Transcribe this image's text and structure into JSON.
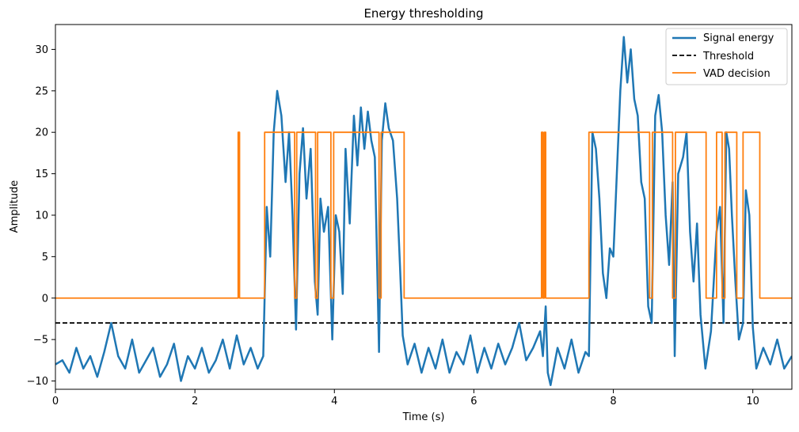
{
  "chart_data": {
    "type": "line",
    "title": "Energy thresholding",
    "xlabel": "Time (s)",
    "ylabel": "Amplitude",
    "xlim": [
      0,
      10.56
    ],
    "ylim": [
      -11,
      33
    ],
    "xticks": [
      0,
      2,
      4,
      6,
      8,
      10
    ],
    "yticks": [
      -10,
      -5,
      0,
      5,
      10,
      15,
      20,
      25,
      30
    ],
    "grid": false,
    "legend_position": "top-right",
    "colors": {
      "energy": "#1f77b4",
      "threshold": "#000000",
      "vad": "#ff7f0e"
    },
    "series": [
      {
        "name": "Signal energy",
        "style": "solid",
        "points": [
          [
            0.0,
            -8.0
          ],
          [
            0.1,
            -7.5
          ],
          [
            0.2,
            -9.0
          ],
          [
            0.3,
            -6.0
          ],
          [
            0.4,
            -8.5
          ],
          [
            0.5,
            -7.0
          ],
          [
            0.6,
            -9.5
          ],
          [
            0.7,
            -6.5
          ],
          [
            0.8,
            -3.0
          ],
          [
            0.9,
            -7.0
          ],
          [
            1.0,
            -8.5
          ],
          [
            1.1,
            -5.0
          ],
          [
            1.2,
            -9.0
          ],
          [
            1.3,
            -7.5
          ],
          [
            1.4,
            -6.0
          ],
          [
            1.5,
            -9.5
          ],
          [
            1.6,
            -8.0
          ],
          [
            1.7,
            -5.5
          ],
          [
            1.8,
            -10.0
          ],
          [
            1.9,
            -7.0
          ],
          [
            2.0,
            -8.5
          ],
          [
            2.1,
            -6.0
          ],
          [
            2.2,
            -9.0
          ],
          [
            2.3,
            -7.5
          ],
          [
            2.4,
            -5.0
          ],
          [
            2.5,
            -8.5
          ],
          [
            2.6,
            -4.5
          ],
          [
            2.7,
            -8.0
          ],
          [
            2.8,
            -6.0
          ],
          [
            2.9,
            -8.5
          ],
          [
            2.98,
            -7.0
          ],
          [
            3.03,
            11.0
          ],
          [
            3.08,
            5.0
          ],
          [
            3.13,
            20.0
          ],
          [
            3.18,
            25.0
          ],
          [
            3.24,
            22.0
          ],
          [
            3.3,
            14.0
          ],
          [
            3.35,
            20.0
          ],
          [
            3.4,
            10.0
          ],
          [
            3.45,
            -3.8
          ],
          [
            3.5,
            15.0
          ],
          [
            3.55,
            20.5
          ],
          [
            3.6,
            12.0
          ],
          [
            3.66,
            18.0
          ],
          [
            3.72,
            2.0
          ],
          [
            3.76,
            -2.0
          ],
          [
            3.8,
            12.0
          ],
          [
            3.85,
            8.0
          ],
          [
            3.91,
            11.0
          ],
          [
            3.97,
            -5.0
          ],
          [
            4.02,
            10.0
          ],
          [
            4.07,
            8.0
          ],
          [
            4.12,
            0.5
          ],
          [
            4.16,
            18.0
          ],
          [
            4.22,
            9.0
          ],
          [
            4.28,
            22.0
          ],
          [
            4.33,
            16.0
          ],
          [
            4.38,
            23.0
          ],
          [
            4.43,
            18.0
          ],
          [
            4.48,
            22.5
          ],
          [
            4.53,
            19.0
          ],
          [
            4.58,
            17.0
          ],
          [
            4.64,
            -6.5
          ],
          [
            4.68,
            19.0
          ],
          [
            4.73,
            23.5
          ],
          [
            4.78,
            20.5
          ],
          [
            4.84,
            19.0
          ],
          [
            4.9,
            12.0
          ],
          [
            4.94,
            4.0
          ],
          [
            4.98,
            -4.5
          ],
          [
            5.05,
            -8.0
          ],
          [
            5.15,
            -5.5
          ],
          [
            5.25,
            -9.0
          ],
          [
            5.35,
            -6.0
          ],
          [
            5.45,
            -8.5
          ],
          [
            5.55,
            -5.0
          ],
          [
            5.65,
            -9.0
          ],
          [
            5.75,
            -6.5
          ],
          [
            5.85,
            -8.0
          ],
          [
            5.95,
            -4.5
          ],
          [
            6.05,
            -9.0
          ],
          [
            6.15,
            -6.0
          ],
          [
            6.25,
            -8.5
          ],
          [
            6.35,
            -5.5
          ],
          [
            6.45,
            -8.0
          ],
          [
            6.55,
            -6.0
          ],
          [
            6.65,
            -3.0
          ],
          [
            6.75,
            -7.5
          ],
          [
            6.85,
            -6.0
          ],
          [
            6.95,
            -4.0
          ],
          [
            6.99,
            -7.0
          ],
          [
            7.03,
            -1.0
          ],
          [
            7.06,
            -9.0
          ],
          [
            7.1,
            -10.5
          ],
          [
            7.2,
            -6.0
          ],
          [
            7.3,
            -8.5
          ],
          [
            7.4,
            -5.0
          ],
          [
            7.5,
            -9.0
          ],
          [
            7.6,
            -6.5
          ],
          [
            7.65,
            -7.0
          ],
          [
            7.7,
            20.0
          ],
          [
            7.75,
            18.0
          ],
          [
            7.8,
            12.0
          ],
          [
            7.85,
            3.0
          ],
          [
            7.9,
            0.0
          ],
          [
            7.95,
            6.0
          ],
          [
            8.0,
            5.0
          ],
          [
            8.05,
            15.0
          ],
          [
            8.1,
            25.0
          ],
          [
            8.15,
            31.5
          ],
          [
            8.2,
            26.0
          ],
          [
            8.25,
            30.0
          ],
          [
            8.3,
            24.0
          ],
          [
            8.35,
            22.0
          ],
          [
            8.4,
            14.0
          ],
          [
            8.45,
            12.0
          ],
          [
            8.5,
            -1.0
          ],
          [
            8.55,
            -3.0
          ],
          [
            8.6,
            22.0
          ],
          [
            8.65,
            24.5
          ],
          [
            8.7,
            20.0
          ],
          [
            8.75,
            10.0
          ],
          [
            8.8,
            4.0
          ],
          [
            8.85,
            14.0
          ],
          [
            8.88,
            -7.0
          ],
          [
            8.93,
            15.0
          ],
          [
            9.0,
            17.0
          ],
          [
            9.05,
            20.0
          ],
          [
            9.1,
            8.0
          ],
          [
            9.15,
            2.0
          ],
          [
            9.2,
            9.0
          ],
          [
            9.25,
            -2.0
          ],
          [
            9.32,
            -8.5
          ],
          [
            9.4,
            -4.0
          ],
          [
            9.48,
            8.0
          ],
          [
            9.53,
            11.0
          ],
          [
            9.58,
            -3.0
          ],
          [
            9.62,
            20.0
          ],
          [
            9.66,
            18.0
          ],
          [
            9.7,
            10.0
          ],
          [
            9.75,
            2.0
          ],
          [
            9.8,
            -5.0
          ],
          [
            9.86,
            -3.0
          ],
          [
            9.9,
            13.0
          ],
          [
            9.95,
            10.0
          ],
          [
            10.0,
            -3.5
          ],
          [
            10.05,
            -8.5
          ],
          [
            10.15,
            -6.0
          ],
          [
            10.25,
            -8.0
          ],
          [
            10.35,
            -5.0
          ],
          [
            10.45,
            -8.5
          ],
          [
            10.56,
            -7.0
          ]
        ]
      },
      {
        "name": "Threshold",
        "style": "dashed",
        "points": [
          [
            0,
            -3
          ],
          [
            10.56,
            -3
          ]
        ]
      },
      {
        "name": "VAD decision",
        "style": "solid",
        "points": [
          [
            0,
            0
          ],
          [
            2.62,
            0
          ],
          [
            2.62,
            20
          ],
          [
            2.64,
            20
          ],
          [
            2.64,
            0
          ],
          [
            3.0,
            0
          ],
          [
            3.0,
            20
          ],
          [
            3.43,
            20
          ],
          [
            3.43,
            0
          ],
          [
            3.46,
            0
          ],
          [
            3.46,
            20
          ],
          [
            3.73,
            20
          ],
          [
            3.73,
            0
          ],
          [
            3.76,
            0
          ],
          [
            3.76,
            20
          ],
          [
            3.95,
            20
          ],
          [
            3.95,
            0
          ],
          [
            3.99,
            0
          ],
          [
            3.99,
            20
          ],
          [
            4.64,
            20
          ],
          [
            4.64,
            0
          ],
          [
            4.67,
            0
          ],
          [
            4.67,
            20
          ],
          [
            5.0,
            20
          ],
          [
            5.0,
            0
          ],
          [
            6.97,
            0
          ],
          [
            6.97,
            20
          ],
          [
            6.99,
            20
          ],
          [
            6.99,
            0
          ],
          [
            7.01,
            0
          ],
          [
            7.01,
            20
          ],
          [
            7.03,
            20
          ],
          [
            7.03,
            0
          ],
          [
            7.65,
            0
          ],
          [
            7.65,
            20
          ],
          [
            8.52,
            20
          ],
          [
            8.52,
            0
          ],
          [
            8.56,
            0
          ],
          [
            8.56,
            20
          ],
          [
            8.85,
            20
          ],
          [
            8.85,
            0
          ],
          [
            8.89,
            0
          ],
          [
            8.89,
            20
          ],
          [
            9.33,
            20
          ],
          [
            9.33,
            0
          ],
          [
            9.48,
            0
          ],
          [
            9.48,
            20
          ],
          [
            9.56,
            20
          ],
          [
            9.56,
            0
          ],
          [
            9.6,
            0
          ],
          [
            9.6,
            20
          ],
          [
            9.77,
            20
          ],
          [
            9.77,
            0
          ],
          [
            9.86,
            0
          ],
          [
            9.86,
            20
          ],
          [
            10.1,
            20
          ],
          [
            10.1,
            0
          ],
          [
            10.56,
            0
          ]
        ]
      }
    ]
  }
}
